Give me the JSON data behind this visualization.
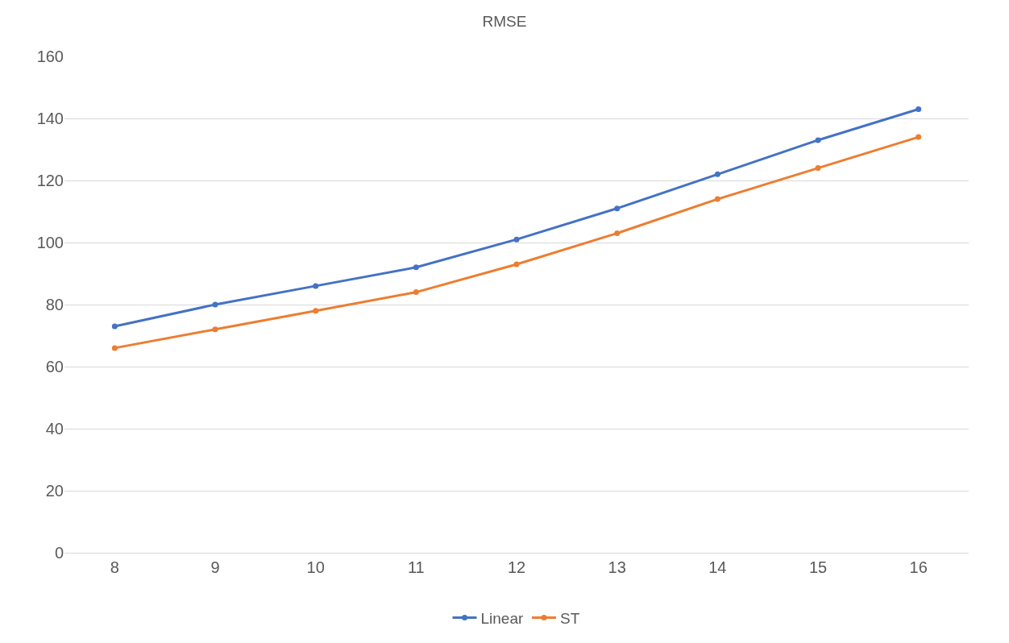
{
  "chart_data": {
    "type": "line",
    "title": "RMSE",
    "categories": [
      "8",
      "9",
      "10",
      "11",
      "12",
      "13",
      "14",
      "15",
      "16"
    ],
    "series": [
      {
        "name": "Linear",
        "color": "#4472c4",
        "values": [
          73,
          80,
          86,
          92,
          101,
          111,
          122,
          133,
          143
        ]
      },
      {
        "name": "ST",
        "color": "#ed7d31",
        "values": [
          66,
          72,
          78,
          84,
          93,
          103,
          114,
          124,
          134
        ]
      }
    ],
    "ylim": [
      0,
      160
    ],
    "yticks": [
      0,
      20,
      40,
      60,
      80,
      100,
      120,
      140,
      160
    ],
    "grid": "y",
    "legend": "bottom",
    "marker": "circle",
    "line_style": "solid"
  }
}
